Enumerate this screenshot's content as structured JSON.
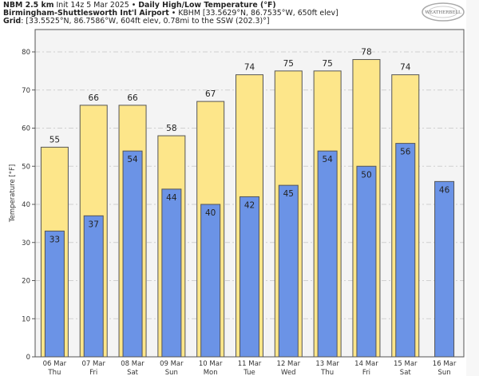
{
  "header": {
    "line1_model": "NBM 2.5 km",
    "line1_init": " Init 14z 5 Mar 2025 • ",
    "line1_title": "Daily High/Low Temperature (°F)",
    "line2_station": "Birmingham-Shuttlesworth Int'l Airport",
    "line2_sep": " • ",
    "line2_info": "KBHM [33.5629°N, 86.7535°W, 650ft elev]",
    "line3_label": "Grid",
    "line3_info": ": [33.5525°N, 86.7586°W, 604ft elev, 0.78mi to the SSW (202.3)°]"
  },
  "logo": {
    "text": "WEATHERBELL",
    "icon": "weatherbell-swirl-logo"
  },
  "colors": {
    "high": "#fde68a",
    "low": "#6b93e6",
    "plot_bg": "#f4f4f4",
    "edge": "#555555"
  },
  "chart_data": {
    "type": "bar",
    "title": "Daily High/Low Temperature (°F)",
    "xlabel": "",
    "ylabel": "Temperature [°F]",
    "ylim": [
      0,
      86
    ],
    "yticks": [
      0,
      10,
      20,
      30,
      40,
      50,
      60,
      70,
      80
    ],
    "grid": true,
    "categories": [
      "06 Mar|Thu",
      "07 Mar|Fri",
      "08 Mar|Sat",
      "09 Mar|Sun",
      "10 Mar|Mon",
      "11 Mar|Tue",
      "12 Mar|Wed",
      "13 Mar|Thu",
      "14 Mar|Fri",
      "15 Mar|Sat",
      "16 Mar|Sun"
    ],
    "series": [
      {
        "name": "High",
        "values": [
          55,
          66,
          66,
          58,
          67,
          74,
          75,
          75,
          78,
          74,
          null
        ],
        "labels": [
          "55",
          "66",
          "66",
          "58",
          "67",
          "74",
          "75",
          "75",
          "78",
          "74",
          ""
        ]
      },
      {
        "name": "Low",
        "values": [
          33,
          37,
          54,
          44,
          40,
          42,
          45,
          54,
          50,
          56,
          46
        ],
        "labels": [
          "33",
          "37",
          "54",
          "44",
          "40",
          "42",
          "45",
          "54",
          "50",
          "56",
          "46"
        ]
      }
    ]
  }
}
